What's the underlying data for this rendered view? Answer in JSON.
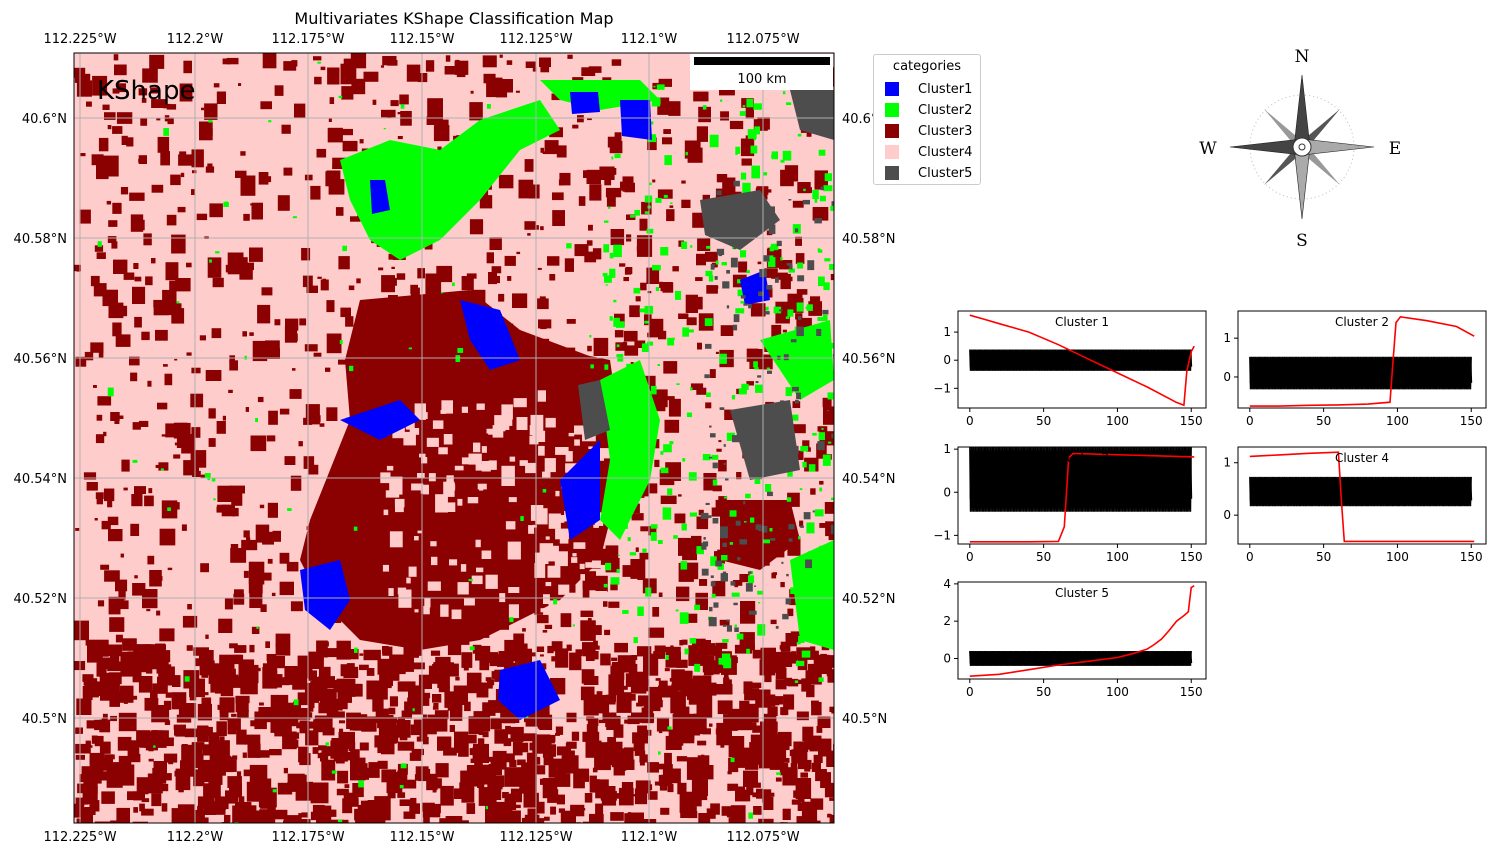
{
  "map": {
    "title": "Multivariates KShape Classification Map",
    "panel_label": "KShape",
    "scale_bar_label": "100 km",
    "lon_ticks": [
      "112.225°W",
      "112.2°W",
      "112.175°W",
      "112.15°W",
      "112.125°W",
      "112.1°W",
      "112.075°W"
    ],
    "lat_ticks": [
      "40.6°N",
      "40.58°N",
      "40.56°N",
      "40.54°N",
      "40.52°N",
      "40.5°N"
    ],
    "grid": true,
    "colors": {
      "background": "#ffcccc",
      "cluster1": "#0000ff",
      "cluster2": "#00ff00",
      "cluster3": "#8b0000",
      "cluster4": "#ffcccc",
      "cluster5": "#4d4d4d"
    }
  },
  "legend": {
    "title": "categories",
    "placement": "right of map",
    "items": [
      {
        "label": "Cluster1",
        "color": "#0000ff"
      },
      {
        "label": "Cluster2",
        "color": "#00ff00"
      },
      {
        "label": "Cluster3",
        "color": "#8b0000"
      },
      {
        "label": "Cluster4",
        "color": "#ffcccc"
      },
      {
        "label": "Cluster5",
        "color": "#4d4d4d"
      }
    ]
  },
  "compass": {
    "n": "N",
    "s": "S",
    "e": "E",
    "w": "W"
  },
  "chart_data": [
    {
      "type": "line",
      "title": "Cluster 1",
      "xlim": [
        -8,
        160
      ],
      "ylim": [
        -1.7,
        1.75
      ],
      "x_ticks": [
        0,
        50,
        100,
        150
      ],
      "y_ticks": [
        -1,
        0,
        1
      ],
      "band": {
        "center": 0.0,
        "half_width": 0.38,
        "color": "#000000"
      },
      "series": [
        {
          "color": "#ff0000",
          "x": [
            0,
            10,
            20,
            40,
            60,
            80,
            100,
            120,
            140,
            145,
            147,
            150,
            152
          ],
          "y": [
            1.6,
            1.45,
            1.3,
            1.0,
            0.55,
            0.05,
            -0.45,
            -0.95,
            -1.5,
            -1.6,
            -0.4,
            0.3,
            0.5
          ]
        }
      ]
    },
    {
      "type": "line",
      "title": "Cluster 2",
      "xlim": [
        -8,
        160
      ],
      "ylim": [
        -0.8,
        1.7
      ],
      "x_ticks": [
        0,
        50,
        100,
        150
      ],
      "y_ticks": [
        0,
        1
      ],
      "band": {
        "center": 0.1,
        "half_width": 0.42,
        "color": "#000000"
      },
      "series": [
        {
          "color": "#ff0000",
          "x": [
            0,
            20,
            40,
            60,
            80,
            95,
            97,
            99,
            102,
            120,
            140,
            152
          ],
          "y": [
            -0.75,
            -0.75,
            -0.73,
            -0.72,
            -0.7,
            -0.65,
            0.4,
            1.4,
            1.55,
            1.45,
            1.3,
            1.05
          ]
        }
      ]
    },
    {
      "type": "line",
      "title": "Cluster 3",
      "xlim": [
        -8,
        160
      ],
      "ylim": [
        -1.2,
        1.05
      ],
      "x_ticks": [
        0,
        50,
        100,
        150
      ],
      "y_ticks": [
        -1,
        0,
        1
      ],
      "band": {
        "center": 0.3,
        "half_width": 0.75,
        "color": "#000000"
      },
      "series": [
        {
          "color": "#ff0000",
          "x": [
            0,
            20,
            40,
            60,
            64,
            67,
            70,
            90,
            120,
            152
          ],
          "y": [
            -1.15,
            -1.15,
            -1.15,
            -1.14,
            -0.8,
            0.8,
            0.9,
            0.88,
            0.85,
            0.82
          ]
        }
      ]
    },
    {
      "type": "line",
      "title": "Cluster 4",
      "xlim": [
        -8,
        160
      ],
      "ylim": [
        -0.55,
        1.3
      ],
      "x_ticks": [
        0,
        50,
        100,
        150
      ],
      "y_ticks": [
        0,
        1
      ],
      "band": {
        "center": 0.45,
        "half_width": 0.28,
        "color": "#000000"
      },
      "series": [
        {
          "color": "#ff0000",
          "x": [
            0,
            20,
            40,
            60,
            62,
            64,
            80,
            120,
            152
          ],
          "y": [
            1.12,
            1.15,
            1.18,
            1.2,
            0.3,
            -0.5,
            -0.5,
            -0.5,
            -0.5
          ]
        }
      ]
    },
    {
      "type": "line",
      "title": "Cluster 5",
      "xlim": [
        -8,
        160
      ],
      "ylim": [
        -1.1,
        4.1
      ],
      "x_ticks": [
        0,
        50,
        100,
        150
      ],
      "y_ticks": [
        0,
        2,
        4
      ],
      "band": {
        "center": 0.0,
        "half_width": 0.4,
        "color": "#000000"
      },
      "series": [
        {
          "color": "#ff0000",
          "x": [
            0,
            20,
            40,
            60,
            80,
            100,
            110,
            120,
            125,
            130,
            135,
            140,
            145,
            148,
            150,
            152
          ],
          "y": [
            -0.95,
            -0.85,
            -0.6,
            -0.35,
            -0.15,
            0.05,
            0.25,
            0.5,
            0.75,
            1.05,
            1.5,
            2.0,
            2.3,
            2.5,
            3.8,
            3.9
          ]
        }
      ]
    }
  ]
}
